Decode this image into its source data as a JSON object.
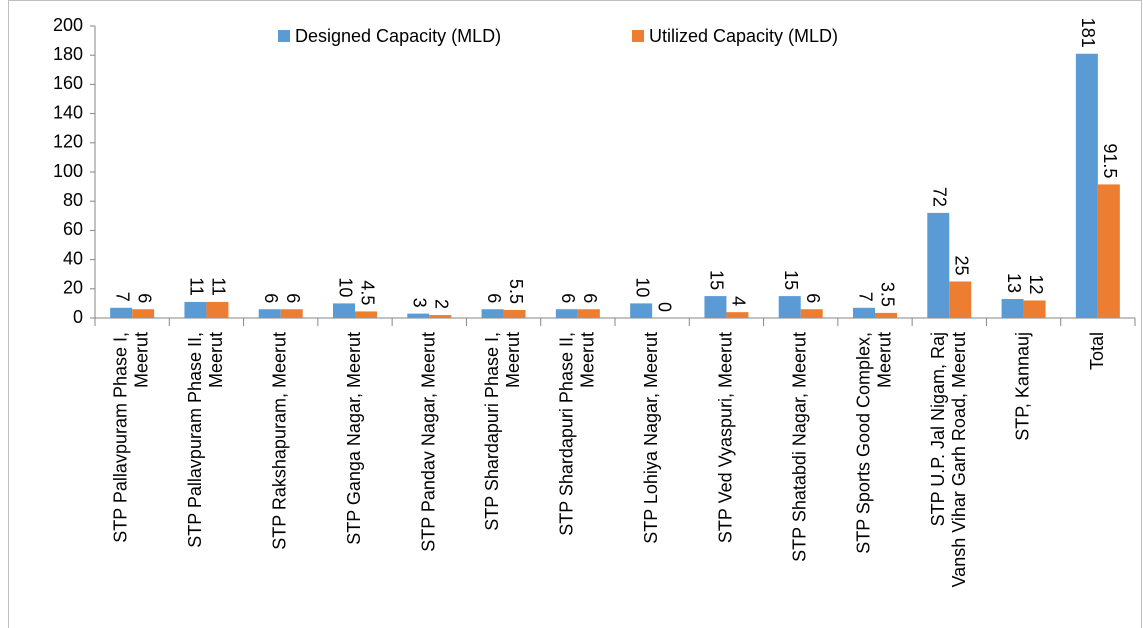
{
  "chart_data": {
    "type": "bar",
    "categories": [
      "STP Pallavpuram Phase I, Meerut",
      "STP Pallavpuram Phase II, Meerut",
      "STP Rakshapuram, Meerut",
      "STP Ganga Nagar, Meerut",
      "STP Pandav Nagar,  Meerut",
      "STP Shardapuri Phase I, Meerut",
      "STP Shardapuri Phase II, Meerut",
      "STP Lohiya Nagar, Meerut",
      "STP Ved Vyaspuri, Meerut",
      "STP Shatabdi Nagar, Meerut",
      "STP Sports Good Complex, Meerut",
      "STP U.P. Jal Nigam,  Raj Vansh Vihar Garh Road, Meerut",
      "STP, Kannauj",
      "Total"
    ],
    "series": [
      {
        "name": "Designed Capacity (MLD)",
        "color": "#5b9bd5",
        "values": [
          7,
          11,
          6,
          10,
          3,
          6,
          6,
          10,
          15,
          15,
          7,
          72,
          13,
          181
        ]
      },
      {
        "name": "Utilized Capacity (MLD)",
        "color": "#ed7d31",
        "values": [
          6,
          11,
          6,
          4.5,
          2,
          5.5,
          6,
          0,
          4,
          6,
          3.5,
          25,
          12,
          91.5
        ]
      }
    ],
    "ylim": [
      0,
      200
    ],
    "yticks": [
      0,
      20,
      40,
      60,
      80,
      100,
      120,
      140,
      160,
      180,
      200
    ],
    "legend": "top"
  }
}
